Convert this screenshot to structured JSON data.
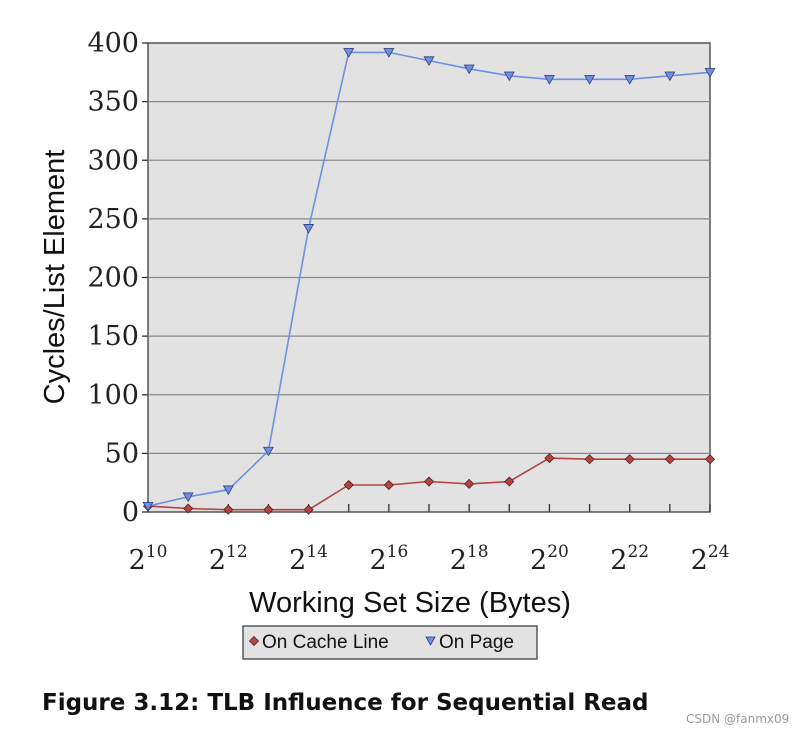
{
  "caption": "Figure 3.12: TLB Influence for Sequential Read",
  "watermark": "CSDN @fanmx09",
  "colors": {
    "plot_background": "#e2e2e2",
    "grid": "#8a8a8a",
    "on_cache_line": "#b24444",
    "on_page": "#6f8fe3"
  },
  "chart_data": {
    "type": "line",
    "title": "",
    "xlabel": "Working Set Size (Bytes)",
    "ylabel": "Cycles/List Element",
    "x_scale": "log2",
    "x": [
      1024,
      2048,
      4096,
      8192,
      16384,
      32768,
      65536,
      131072,
      262144,
      524288,
      1048576,
      2097152,
      4194304,
      8388608,
      16777216
    ],
    "x_ticks": [
      {
        "value": 1024,
        "base": "2",
        "exp": "10"
      },
      {
        "value": 4096,
        "base": "2",
        "exp": "12"
      },
      {
        "value": 16384,
        "base": "2",
        "exp": "14"
      },
      {
        "value": 65536,
        "base": "2",
        "exp": "16"
      },
      {
        "value": 262144,
        "base": "2",
        "exp": "18"
      },
      {
        "value": 1048576,
        "base": "2",
        "exp": "20"
      },
      {
        "value": 4194304,
        "base": "2",
        "exp": "22"
      },
      {
        "value": 16777216,
        "base": "2",
        "exp": "24"
      }
    ],
    "xlim": [
      1024,
      16777216
    ],
    "ylim": [
      0,
      400
    ],
    "y_ticks": [
      0,
      50,
      100,
      150,
      200,
      250,
      300,
      350,
      400
    ],
    "grid": "horizontal",
    "legend_position": "bottom-center",
    "series": [
      {
        "name": "On Cache Line",
        "marker": "diamond",
        "values": [
          5,
          3,
          2,
          2,
          2,
          23,
          23,
          26,
          24,
          26,
          46,
          45,
          45,
          45,
          45
        ]
      },
      {
        "name": "On Page",
        "marker": "triangle-down",
        "values": [
          5,
          13,
          19,
          52,
          242,
          392,
          392,
          385,
          378,
          372,
          369,
          369,
          369,
          372,
          375
        ]
      }
    ]
  }
}
